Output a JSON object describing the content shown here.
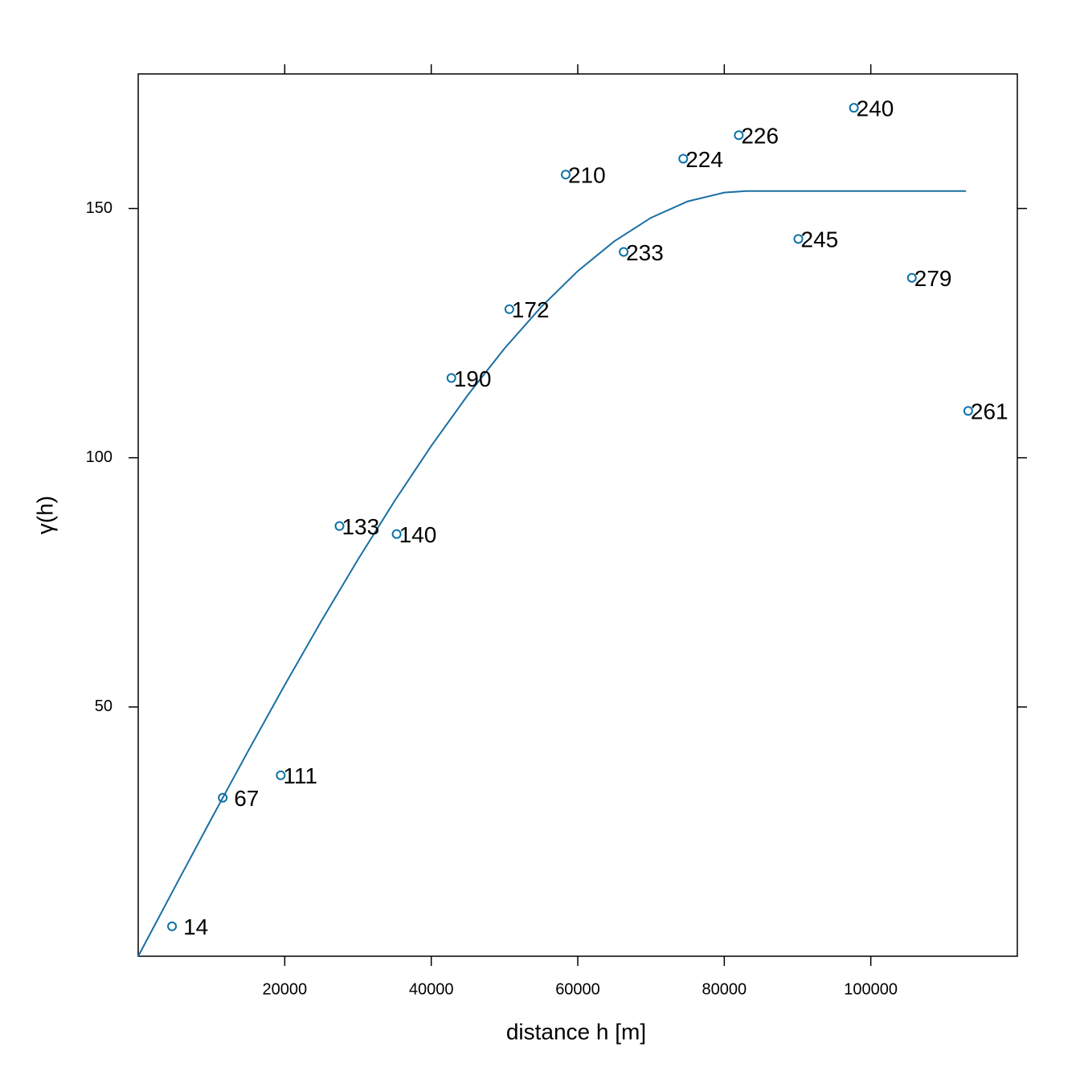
{
  "chart_data": {
    "type": "scatter",
    "xlabel": "distance h [m]",
    "ylabel": "γ(h)",
    "xlim": [
      0,
      120000
    ],
    "ylim": [
      0,
      177
    ],
    "xticks": [
      20000,
      40000,
      60000,
      80000,
      100000
    ],
    "yticks": [
      50,
      100,
      150
    ],
    "series": [
      {
        "color": "#0b72a8",
        "x": [
          4615,
          11538,
          19451,
          27473,
          35275,
          42747,
          50659,
          58352,
          66264,
          74396,
          81978,
          90110,
          97692,
          105604,
          113297
        ],
        "values": [
          6.0,
          31.8,
          36.3,
          86.3,
          84.7,
          116.0,
          129.8,
          156.8,
          141.3,
          160.0,
          164.7,
          143.9,
          170.2,
          136.1,
          109.4
        ],
        "point_labels": [
          14,
          67,
          111,
          133,
          140,
          190,
          172,
          210,
          233,
          224,
          226,
          245,
          240,
          279,
          261
        ]
      }
    ],
    "model": {
      "color": "#1a6ea3",
      "x": [
        0,
        5000,
        10000,
        15000,
        20000,
        25000,
        30000,
        35000,
        40000,
        45000,
        50000,
        55000,
        60000,
        65000,
        70000,
        75000,
        80000,
        83000,
        113000
      ],
      "values": [
        0,
        13.85,
        27.61,
        41.16,
        54.41,
        67.26,
        79.6,
        91.34,
        102.37,
        112.6,
        121.93,
        130.24,
        137.45,
        143.45,
        148.15,
        151.43,
        153.2,
        153.5,
        153.5
      ]
    }
  }
}
